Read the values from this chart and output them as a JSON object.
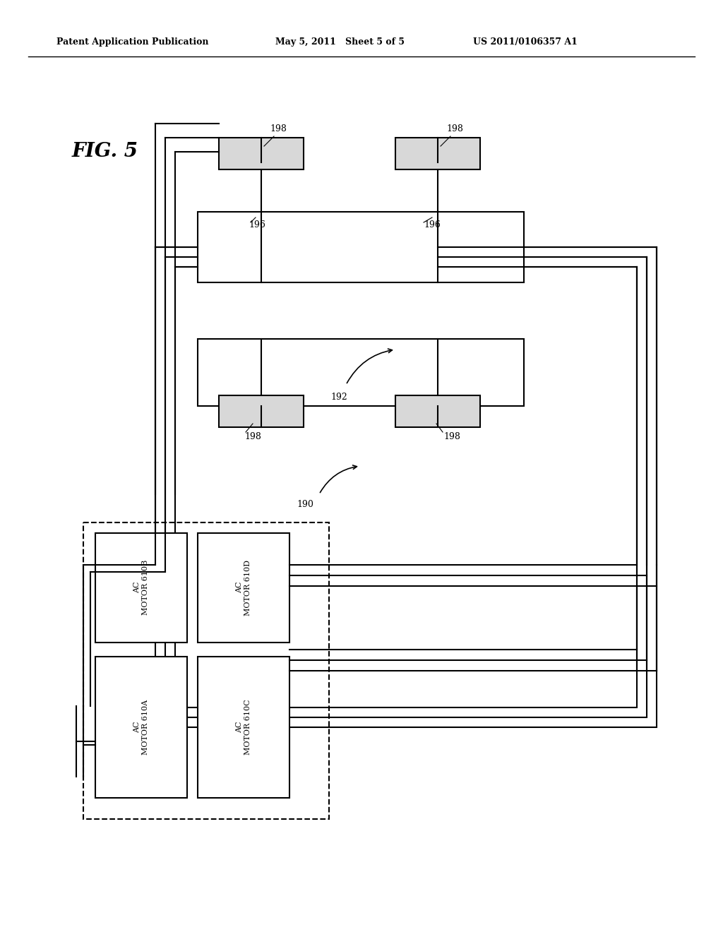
{
  "bg_color": "#ffffff",
  "header_left": "Patent Application Publication",
  "header_mid": "May 5, 2011   Sheet 5 of 5",
  "header_right": "US 2011/0106357 A1",
  "fig_label": "FIG. 5",
  "motor_labels": [
    "AC\nMOTOR 610B",
    "AC\nMOTOR 610D",
    "AC\nMOTOR 610A",
    "AC\nMOTOR 610C"
  ]
}
